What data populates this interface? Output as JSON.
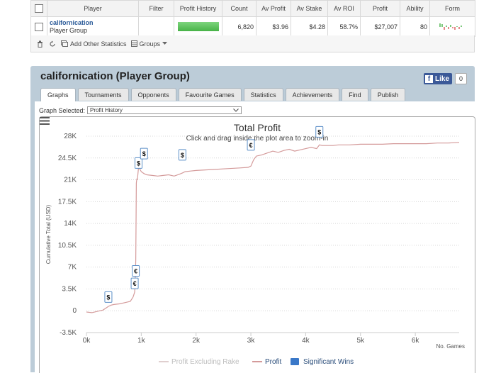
{
  "table": {
    "headers": [
      "",
      "Player",
      "Filter",
      "Profit History",
      "Count",
      "Av Profit",
      "Av Stake",
      "Av ROI",
      "Profit",
      "Ability",
      "Form"
    ],
    "row": {
      "player_name": "californication",
      "player_sub": "Player Group",
      "filter": "",
      "count": "6,820",
      "av_profit": "$3.96",
      "av_stake": "$4.28",
      "av_roi": "58.7%",
      "profit": "$27,007",
      "ability": "80"
    }
  },
  "toolbar": {
    "add_stats_label": "Add Other Statistics",
    "groups_label": "Groups"
  },
  "panel": {
    "title": "californication (Player Group)",
    "fb_like": "Like",
    "fb_count": "0",
    "tabs": [
      "Graphs",
      "Tournaments",
      "Opponents",
      "Favourite Games",
      "Statistics",
      "Achievements",
      "Find",
      "Publish"
    ],
    "active_tab": "Graphs",
    "graph_selected_label": "Graph Selected:",
    "graph_selected_value": "Profit History"
  },
  "chart_data": {
    "type": "line",
    "title": "Total Profit",
    "subtitle": "Click and drag inside the plot area to zoom-in",
    "xlabel": "No. Games",
    "ylabel": "Cumulative Total (USD)",
    "xlim": [
      0,
      6800
    ],
    "ylim": [
      -3500,
      28000
    ],
    "x_ticks": [
      "0k",
      "1k",
      "2k",
      "3k",
      "4k",
      "5k",
      "6k"
    ],
    "x_tick_values": [
      0,
      1000,
      2000,
      3000,
      4000,
      5000,
      6000
    ],
    "y_ticks": [
      "-3.5K",
      "0",
      "3.5K",
      "7K",
      "10.5K",
      "14K",
      "17.5K",
      "21K",
      "24.5K",
      "28K"
    ],
    "y_tick_values": [
      -3500,
      0,
      3500,
      7000,
      10500,
      14000,
      17500,
      21000,
      24500,
      28000
    ],
    "legend": [
      "Profit Excluding Rake",
      "Profit",
      "Significant Wins"
    ],
    "legend_colors": [
      "#e0cfcf",
      "#d49a9a",
      "#3a78c8"
    ],
    "series": [
      {
        "name": "Profit",
        "color": "#d49a9a",
        "x": [
          0,
          100,
          200,
          300,
          350,
          400,
          450,
          500,
          600,
          700,
          800,
          850,
          880,
          890,
          900,
          905,
          910,
          920,
          930,
          950,
          970,
          1000,
          1050,
          1100,
          1200,
          1300,
          1400,
          1500,
          1600,
          1700,
          1750,
          1800,
          1900,
          2000,
          2200,
          2400,
          2600,
          2800,
          2950,
          3000,
          3050,
          3100,
          3200,
          3300,
          3400,
          3500,
          3600,
          3700,
          3800,
          3900,
          4000,
          4100,
          4200,
          4250,
          4300,
          4400,
          4500,
          4600,
          4800,
          5000,
          5200,
          5400,
          5600,
          5800,
          6000,
          6200,
          6400,
          6600,
          6800
        ],
        "y": [
          -200,
          -300,
          -100,
          100,
          400,
          700,
          900,
          1000,
          1100,
          1300,
          1500,
          2200,
          3000,
          5000,
          8000,
          14000,
          20500,
          21200,
          21000,
          23000,
          22800,
          22300,
          22000,
          21800,
          21700,
          21600,
          21700,
          21800,
          21600,
          21900,
          22100,
          22300,
          22400,
          22500,
          22600,
          22700,
          22800,
          22900,
          23000,
          23200,
          24200,
          24800,
          25000,
          25300,
          25600,
          25400,
          25700,
          25900,
          25600,
          25800,
          26000,
          26200,
          26000,
          26600,
          26500,
          26500,
          26500,
          26600,
          26600,
          26700,
          26700,
          26700,
          26800,
          26800,
          26800,
          26800,
          26900,
          26900,
          27000
        ]
      }
    ],
    "significant_wins": [
      {
        "x": 400,
        "y": 1000,
        "label": "$"
      },
      {
        "x": 880,
        "y": 3200,
        "label": "€"
      },
      {
        "x": 900,
        "y": 5200,
        "label": "€"
      },
      {
        "x": 950,
        "y": 22500,
        "label": "$"
      },
      {
        "x": 1050,
        "y": 24000,
        "label": "$"
      },
      {
        "x": 1750,
        "y": 23800,
        "label": "$"
      },
      {
        "x": 3000,
        "y": 25400,
        "label": "€"
      },
      {
        "x": 4250,
        "y": 27500,
        "label": "$"
      }
    ],
    "grid": true,
    "legend_position": "bottom"
  }
}
